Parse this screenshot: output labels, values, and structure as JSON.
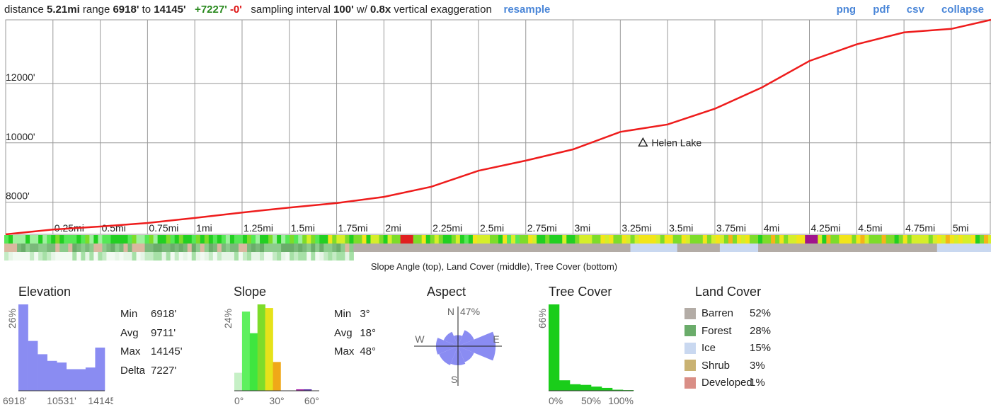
{
  "header": {
    "distance_label": "distance",
    "distance": "5.21mi",
    "range_label": "range",
    "range_min": "6918'",
    "to_label": "to",
    "range_max": "14145'",
    "gain": "+7227'",
    "loss": "-0'",
    "sampling_label": "sampling interval",
    "sampling": "100'",
    "w_label": "w/",
    "exaggeration": "0.8x",
    "exaggeration_label": "vertical exaggeration",
    "resample": "resample",
    "links": [
      "png",
      "pdf",
      "csv",
      "collapse"
    ]
  },
  "colors": {
    "profile_line": "#ee1c1c",
    "hist_fill": "#8a8cf2",
    "link": "#4a86d8",
    "grid": "#999999"
  },
  "chart_data": [
    {
      "type": "line",
      "title": "",
      "xlabel": "",
      "ylabel": "",
      "xlim": [
        0,
        5.21
      ],
      "ylim": [
        6918,
        14145
      ],
      "y_ticks": [
        "8000'",
        "10000'",
        "12000'"
      ],
      "y_tick_values": [
        8000,
        10000,
        12000
      ],
      "x_ticks": [
        "0.25mi",
        "0.5mi",
        "0.75mi",
        "1mi",
        "1.25mi",
        "1.5mi",
        "1.75mi",
        "2mi",
        "2.25mi",
        "2.5mi",
        "2.75mi",
        "3mi",
        "3.25mi",
        "3.5mi",
        "3.75mi",
        "4mi",
        "4.25mi",
        "4.5mi",
        "4.75mi",
        "5mi"
      ],
      "x_tick_values": [
        0.25,
        0.5,
        0.75,
        1,
        1.25,
        1.5,
        1.75,
        2,
        2.25,
        2.5,
        2.75,
        3,
        3.25,
        3.5,
        3.75,
        4,
        4.25,
        4.5,
        4.75,
        5
      ],
      "series": [
        {
          "x": [
            0,
            0.25,
            0.5,
            0.75,
            1,
            1.25,
            1.5,
            1.75,
            2,
            2.25,
            2.5,
            2.75,
            3,
            3.25,
            3.5,
            3.75,
            4,
            4.25,
            4.5,
            4.75,
            5,
            5.21
          ],
          "y": [
            6918,
            7080,
            7180,
            7300,
            7470,
            7650,
            7820,
            7970,
            8180,
            8520,
            9060,
            9400,
            9780,
            10370,
            10620,
            11150,
            11870,
            12760,
            13320,
            13720,
            13840,
            14145
          ]
        }
      ],
      "annotation": {
        "label": "Helen Lake",
        "x": 3.25,
        "y": 10370
      },
      "grid": true
    },
    {
      "type": "heatmap",
      "title": "",
      "caption": "Slope Angle (top), Land Cover (middle), Tree Cover (bottom)",
      "rows": [
        "slope",
        "land_cover",
        "tree_cover"
      ]
    },
    {
      "type": "bar",
      "title": "Elevation",
      "ymax_label": "26%",
      "x_tick_labels": [
        "6918'",
        "10531'",
        "14145'"
      ],
      "values": [
        26,
        15,
        11,
        9,
        8.5,
        6.5,
        6.5,
        7,
        13
      ],
      "stats": [
        {
          "label": "Min",
          "value": "6918'"
        },
        {
          "label": "Avg",
          "value": "9711'"
        },
        {
          "label": "Max",
          "value": "14145'"
        },
        {
          "label": "Delta",
          "value": "7227'"
        }
      ]
    },
    {
      "type": "bar",
      "title": "Slope",
      "ymax_label": "24%",
      "x_tick_labels": [
        "0°",
        "30°",
        "60°"
      ],
      "bin_colors": [
        "#c6f0c6",
        "#5ef05e",
        "#3fe63f",
        "#7ddc2a",
        "#e6e21a",
        "#f0a818",
        "#f2581c",
        "#d01c28",
        "#a21ca6",
        "#5a2fa8",
        "#3f3fa6"
      ],
      "values": [
        5,
        22,
        16,
        24,
        23,
        8,
        0,
        0,
        0.4,
        0.4,
        0
      ],
      "stats": [
        {
          "label": "Min",
          "value": "3°"
        },
        {
          "label": "Avg",
          "value": "18°"
        },
        {
          "label": "Max",
          "value": "48°"
        }
      ]
    },
    {
      "type": "pie",
      "title": "Aspect",
      "max_label": "47%",
      "directions": [
        "N",
        "E",
        "S",
        "W"
      ],
      "values": [
        4,
        10,
        47,
        10,
        12,
        14,
        16,
        8
      ]
    },
    {
      "type": "bar",
      "title": "Tree Cover",
      "ymax_label": "66%",
      "x_tick_labels": [
        "0%",
        "50%",
        "100%"
      ],
      "values": [
        66,
        8,
        5,
        4.5,
        3.2,
        2.2,
        0.8,
        0.5
      ],
      "bar_color": "#1acd1a"
    },
    {
      "type": "table",
      "title": "Land Cover",
      "categories": [
        "Barren",
        "Forest",
        "Ice",
        "Shrub",
        "Developed"
      ],
      "values": [
        "52%",
        "28%",
        "15%",
        "3%",
        "1%"
      ],
      "colors": [
        "#b3aca6",
        "#6aac6a",
        "#c9d8f0",
        "#c9b272",
        "#d98e86"
      ]
    }
  ]
}
